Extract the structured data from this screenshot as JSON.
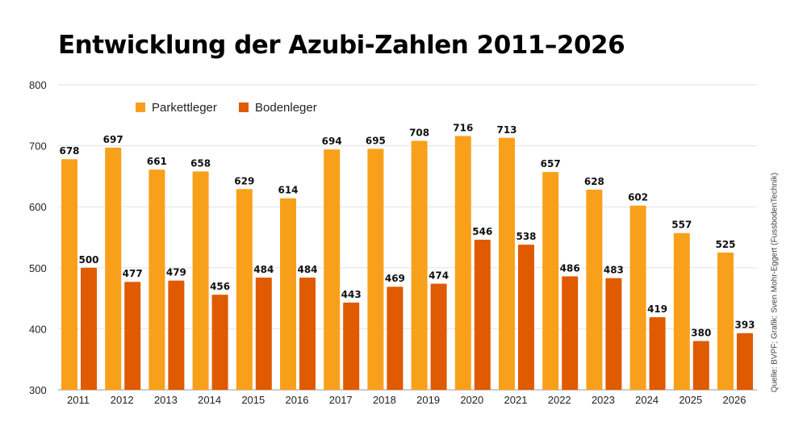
{
  "chart_data": {
    "type": "bar",
    "title": "Entwicklung der Azubi-Zahlen 2011–2026",
    "source": "Quelle: BVPF; Grafik: Sven Mohr-Eggert (FussbodenTechnik)",
    "categories": [
      "2011",
      "2012",
      "2013",
      "2014",
      "2015",
      "2016",
      "2017",
      "2018",
      "2019",
      "2020",
      "2021",
      "2022",
      "2023",
      "2024",
      "2025",
      "2026"
    ],
    "series": [
      {
        "name": "Parkettleger",
        "color": "#F9A01B",
        "values": [
          678,
          697,
          661,
          658,
          629,
          614,
          694,
          695,
          708,
          716,
          713,
          657,
          628,
          602,
          557,
          525
        ]
      },
      {
        "name": "Bodenleger",
        "color": "#E05A00",
        "values": [
          500,
          477,
          479,
          456,
          484,
          484,
          443,
          469,
          474,
          546,
          538,
          486,
          483,
          419,
          380,
          393
        ]
      }
    ],
    "ylim": [
      300,
      800
    ],
    "yticks": [
      300,
      400,
      500,
      600,
      700,
      800
    ],
    "grid": true,
    "legend": "top-left",
    "xlabel": "",
    "ylabel": ""
  }
}
